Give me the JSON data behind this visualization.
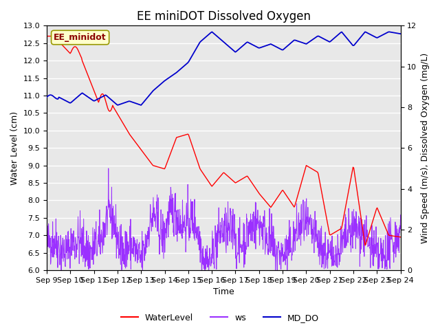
{
  "title": "EE miniDOT Dissolved Oxygen",
  "xlabel": "Time",
  "ylabel_left": "Water Level (cm)",
  "ylabel_right": "Wind Speed (m/s), Dissolved Oxygen (mg/L)",
  "annotation": "EE_minidot",
  "ylim_left": [
    6.0,
    13.0
  ],
  "ylim_right": [
    0,
    12
  ],
  "yticks_left": [
    6.0,
    6.5,
    7.0,
    7.5,
    8.0,
    8.5,
    9.0,
    9.5,
    10.0,
    10.5,
    11.0,
    11.5,
    12.0,
    12.5,
    13.0
  ],
  "yticks_right": [
    0,
    2,
    4,
    6,
    8,
    10,
    12
  ],
  "xtick_labels": [
    "Sep 9",
    "Sep 10",
    "Sep 11",
    "Sep 12",
    "Sep 13",
    "Sep 14",
    "Sep 15",
    "Sep 16",
    "Sep 17",
    "Sep 18",
    "Sep 19",
    "Sep 20",
    "Sep 21",
    "Sep 22",
    "Sep 23",
    "Sep 24"
  ],
  "color_waterlevel": "#ff0000",
  "color_ws": "#9b30ff",
  "color_mddo": "#0000cc",
  "background_color": "#e8e8e8",
  "legend_labels": [
    "WaterLevel",
    "ws",
    "MD_DO"
  ],
  "title_fontsize": 12,
  "axis_fontsize": 9,
  "tick_fontsize": 8,
  "legend_fontsize": 9,
  "annotation_fontsize": 9,
  "xlim": [
    0,
    15
  ],
  "n_xticks": 16
}
